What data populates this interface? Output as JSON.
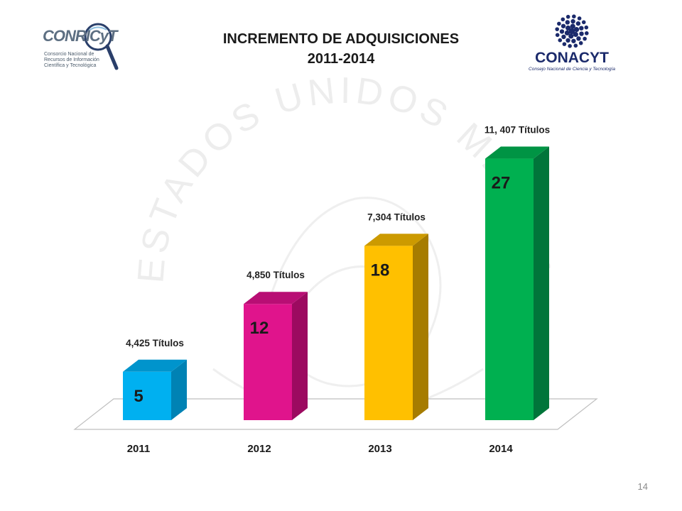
{
  "slide": {
    "title_line1": "INCREMENTO DE ADQUISICIONES",
    "title_line2": "2011-2014",
    "page_number": "14"
  },
  "logos": {
    "left": {
      "name": "CONRICyT",
      "subtitle_lines": [
        "Consorcio Nacional de",
        "Recursos de Información",
        "Científica y Tecnológica"
      ]
    },
    "right": {
      "name": "CONACYT",
      "subtitle": "Consejo Nacional de Ciencia y Tecnología"
    }
  },
  "background_seal_text": "ESTADOS UNIDOS MEXICANOS",
  "chart_data": {
    "type": "bar",
    "title": "INCREMENTO DE ADQUISICIONES 2011-2014",
    "categories": [
      "2011",
      "2012",
      "2013",
      "2014"
    ],
    "values": [
      5,
      12,
      18,
      27
    ],
    "annotations": [
      "4,425 Títulos",
      "4,850 Títulos",
      "7,304 Títulos",
      "11, 407 Títulos"
    ],
    "colors": [
      {
        "front": "#00b0f0",
        "side": "#0082b4",
        "top": "#0094cc"
      },
      {
        "front": "#e0148c",
        "side": "#9c0a60",
        "top": "#b80e74"
      },
      {
        "front": "#ffc000",
        "side": "#a67c00",
        "top": "#cc9a00"
      },
      {
        "front": "#00b050",
        "side": "#00753a",
        "top": "#009444"
      }
    ],
    "ylim": [
      0,
      30
    ],
    "grid": false,
    "legend": "none",
    "style": "3d"
  }
}
